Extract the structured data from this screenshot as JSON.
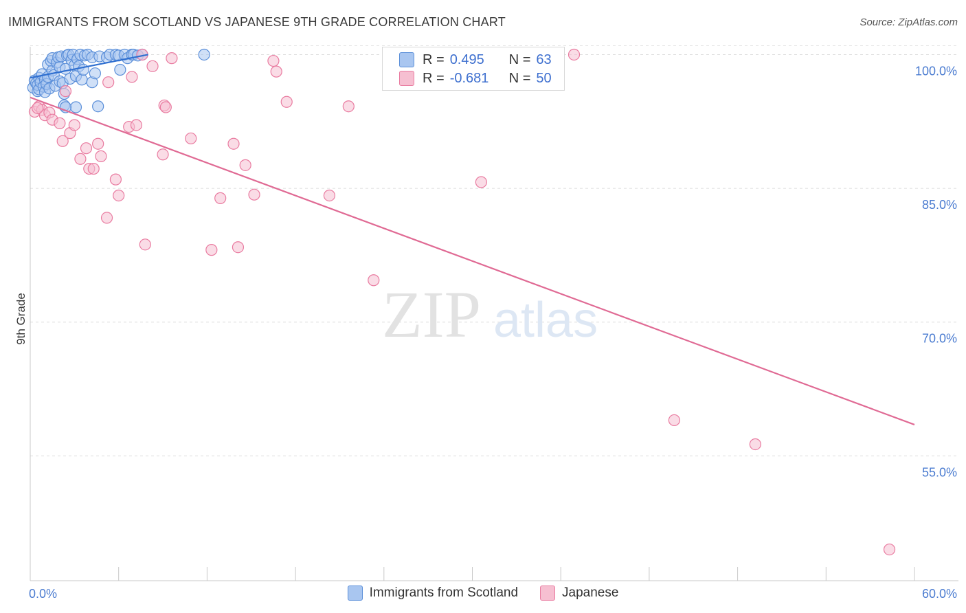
{
  "title": "IMMIGRANTS FROM SCOTLAND VS JAPANESE 9TH GRADE CORRELATION CHART",
  "source": "Source: ZipAtlas.com",
  "watermark": {
    "zip": "ZIP",
    "atlas": "atlas"
  },
  "legend": {
    "r_label": "R =",
    "n_label": "N =",
    "rows": [
      {
        "r": "0.495",
        "n": "63"
      },
      {
        "r": "-0.681",
        "n": "50"
      }
    ]
  },
  "chart_data": {
    "type": "scatter",
    "title": "IMMIGRANTS FROM SCOTLAND VS JAPANESE 9TH GRADE CORRELATION CHART",
    "xlabel": "",
    "ylabel": "9th Grade",
    "xlim": [
      0,
      60
    ],
    "ylim": [
      41,
      101.5
    ],
    "x_tick_labels": [
      {
        "value": 0,
        "label": "0.0%"
      },
      {
        "value": 60,
        "label": "60.0%"
      }
    ],
    "x_minor_ticks": [
      0,
      6,
      12,
      18,
      24,
      30,
      36,
      42,
      48,
      54,
      60
    ],
    "y_ticks": [
      {
        "value": 100,
        "label": "100.0%"
      },
      {
        "value": 85,
        "label": "85.0%"
      },
      {
        "value": 70,
        "label": "70.0%"
      },
      {
        "value": 55,
        "label": "55.0%"
      }
    ],
    "grid": true,
    "series": [
      {
        "name": "Immigrants from Scotland",
        "color": "#5b8fd9",
        "fill": "#a9c6f0",
        "trend": {
          "x": [
            0.0,
            8.0
          ],
          "y": [
            97.4,
            100.0
          ]
        },
        "points": [
          [
            0.2,
            96.3
          ],
          [
            0.3,
            97.1
          ],
          [
            0.4,
            96.8
          ],
          [
            0.5,
            95.9
          ],
          [
            0.5,
            96.6
          ],
          [
            0.6,
            97.4
          ],
          [
            0.6,
            96.1
          ],
          [
            0.7,
            96.9
          ],
          [
            0.8,
            97.8
          ],
          [
            0.9,
            96.4
          ],
          [
            1.0,
            95.8
          ],
          [
            1.0,
            97.2
          ],
          [
            1.1,
            96.7
          ],
          [
            1.2,
            98.9
          ],
          [
            1.2,
            97.5
          ],
          [
            1.3,
            96.2
          ],
          [
            1.4,
            99.3
          ],
          [
            1.5,
            99.6
          ],
          [
            1.5,
            98.2
          ],
          [
            1.6,
            97.7
          ],
          [
            1.7,
            96.5
          ],
          [
            1.8,
            99.1
          ],
          [
            1.9,
            99.7
          ],
          [
            2.0,
            98.6
          ],
          [
            2.0,
            97.0
          ],
          [
            2.1,
            99.8
          ],
          [
            2.2,
            96.8
          ],
          [
            2.3,
            95.6
          ],
          [
            2.3,
            94.3
          ],
          [
            2.4,
            98.4
          ],
          [
            2.5,
            99.9
          ],
          [
            2.6,
            100.0
          ],
          [
            2.7,
            97.3
          ],
          [
            2.8,
            99.4
          ],
          [
            2.9,
            100.0
          ],
          [
            3.0,
            98.8
          ],
          [
            3.1,
            94.1
          ],
          [
            3.1,
            97.6
          ],
          [
            3.2,
            99.5
          ],
          [
            3.3,
            98.7
          ],
          [
            3.4,
            100.0
          ],
          [
            3.5,
            97.2
          ],
          [
            3.6,
            98.3
          ],
          [
            3.7,
            99.9
          ],
          [
            3.9,
            100.0
          ],
          [
            4.2,
            99.7
          ],
          [
            4.2,
            96.9
          ],
          [
            4.4,
            97.9
          ],
          [
            4.6,
            94.2
          ],
          [
            4.7,
            99.8
          ],
          [
            5.2,
            99.7
          ],
          [
            5.4,
            100.0
          ],
          [
            5.8,
            100.0
          ],
          [
            6.0,
            99.9
          ],
          [
            6.1,
            98.3
          ],
          [
            6.4,
            100.0
          ],
          [
            6.6,
            99.6
          ],
          [
            6.9,
            100.0
          ],
          [
            7.0,
            100.0
          ],
          [
            7.3,
            99.9
          ],
          [
            7.6,
            100.0
          ],
          [
            11.8,
            100.0
          ],
          [
            2.4,
            94.1
          ]
        ]
      },
      {
        "name": "Japanese",
        "color": "#e97ba0",
        "fill": "#f6bfd1",
        "trend": {
          "x": [
            0.0,
            60.0
          ],
          "y": [
            95.2,
            58.5
          ]
        },
        "points": [
          [
            0.3,
            93.6
          ],
          [
            0.6,
            94.2
          ],
          [
            0.8,
            93.8
          ],
          [
            1.0,
            93.2
          ],
          [
            1.3,
            93.5
          ],
          [
            1.5,
            92.7
          ],
          [
            2.0,
            92.3
          ],
          [
            2.2,
            90.3
          ],
          [
            2.4,
            95.9
          ],
          [
            2.7,
            91.2
          ],
          [
            3.0,
            92.1
          ],
          [
            3.4,
            88.3
          ],
          [
            3.8,
            89.5
          ],
          [
            4.0,
            87.2
          ],
          [
            4.3,
            87.2
          ],
          [
            4.6,
            90.0
          ],
          [
            4.8,
            88.6
          ],
          [
            5.2,
            81.7
          ],
          [
            5.3,
            96.9
          ],
          [
            5.8,
            86.0
          ],
          [
            6.0,
            84.2
          ],
          [
            6.7,
            91.9
          ],
          [
            6.9,
            97.5
          ],
          [
            7.2,
            92.1
          ],
          [
            7.6,
            100.0
          ],
          [
            7.8,
            78.7
          ],
          [
            8.3,
            98.7
          ],
          [
            9.0,
            88.8
          ],
          [
            9.1,
            94.3
          ],
          [
            9.2,
            94.1
          ],
          [
            9.6,
            99.6
          ],
          [
            10.9,
            90.6
          ],
          [
            12.3,
            78.1
          ],
          [
            12.9,
            83.9
          ],
          [
            13.8,
            90.0
          ],
          [
            14.1,
            78.4
          ],
          [
            14.6,
            87.6
          ],
          [
            15.2,
            84.3
          ],
          [
            16.5,
            99.3
          ],
          [
            16.7,
            98.1
          ],
          [
            17.4,
            94.7
          ],
          [
            20.3,
            84.2
          ],
          [
            21.6,
            94.2
          ],
          [
            23.3,
            74.7
          ],
          [
            30.6,
            85.7
          ],
          [
            36.9,
            100.0
          ],
          [
            43.7,
            59.0
          ],
          [
            49.2,
            56.3
          ],
          [
            58.3,
            44.5
          ],
          [
            0.5,
            94.0
          ]
        ]
      }
    ]
  }
}
